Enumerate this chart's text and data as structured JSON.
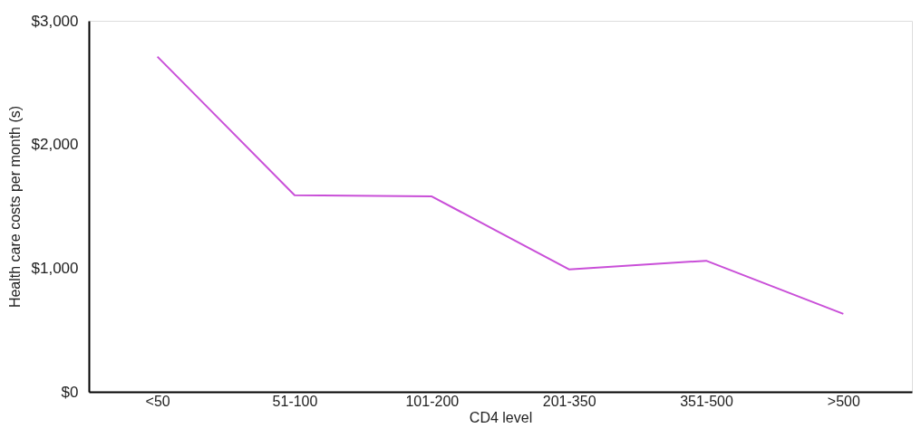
{
  "chart_data": {
    "type": "line",
    "xlabel": "CD4 level",
    "ylabel": "Health care costs per month (s)",
    "categories": [
      "<50",
      "51-100",
      "101-200",
      "201-350",
      "351-500",
      ">500"
    ],
    "series": [
      {
        "color": "#c94fd8",
        "values": [
          2710,
          1590,
          1580,
          990,
          1060,
          630
        ]
      }
    ],
    "ylim": [
      0,
      3000
    ],
    "yticks": [
      {
        "value": 0,
        "label": "$0"
      },
      {
        "value": 1000,
        "label": "$1,000"
      },
      {
        "value": 2000,
        "label": "$2,000"
      },
      {
        "value": 3000,
        "label": "$3,000"
      }
    ],
    "grid": false,
    "marker": "none",
    "line_style": "solid"
  }
}
